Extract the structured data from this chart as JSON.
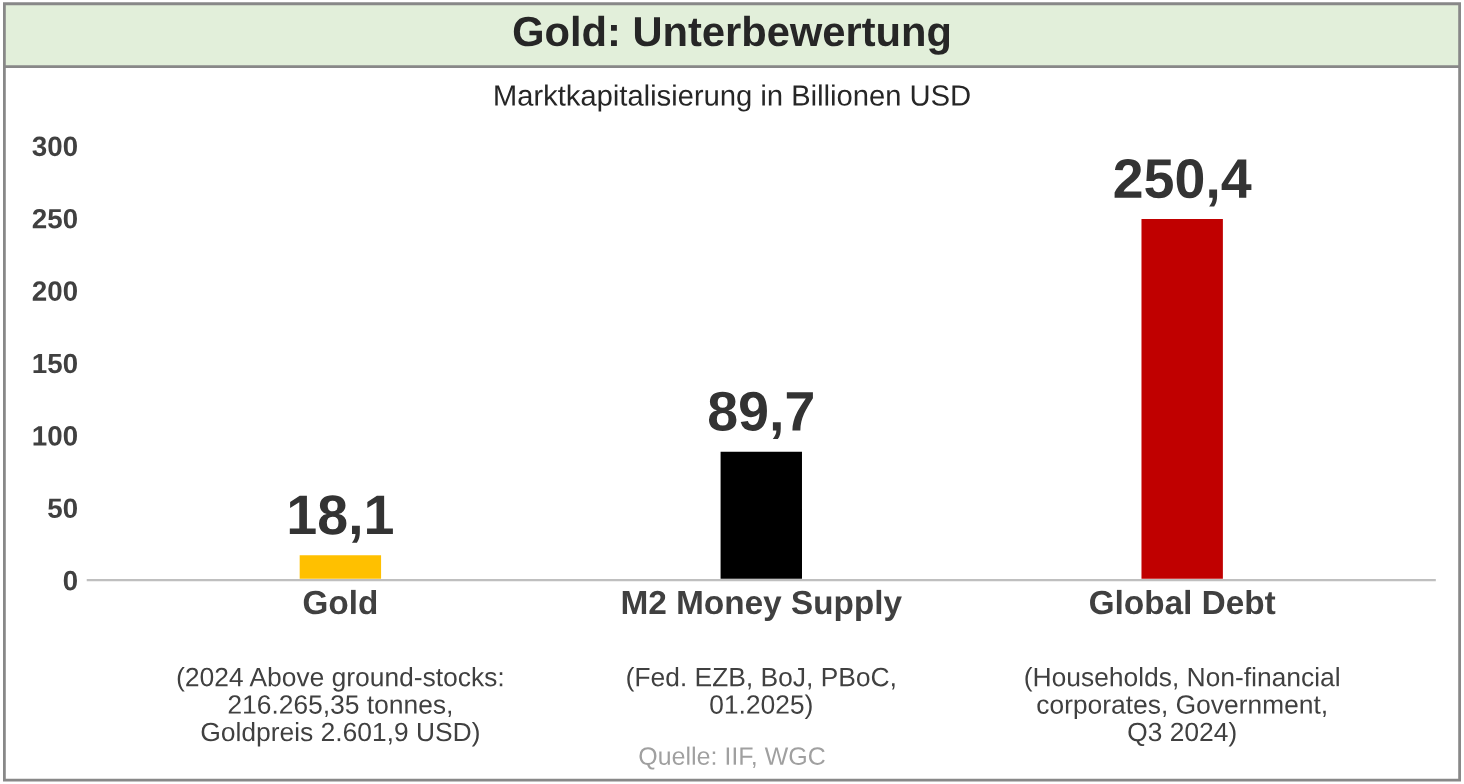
{
  "chart_data": {
    "type": "bar",
    "title": "Gold: Unterbewertung",
    "subtitle": "Marktkapitalisierung in Billionen USD",
    "categories": [
      "Gold",
      "M2 Money Supply",
      "Global Debt"
    ],
    "values": [
      18.1,
      89.7,
      250.4
    ],
    "colors": [
      "#ffc000",
      "#000000",
      "#c00000"
    ],
    "value_labels": [
      "18,1",
      "89,7",
      "250,4"
    ],
    "ylim": [
      0,
      300
    ],
    "yticks": [
      0,
      50,
      100,
      150,
      200,
      250,
      300
    ],
    "grid": false,
    "annotations": [
      "(2024 Above ground-stocks:\n216.265,35 tonnes,\nGoldpreis 2.601,9 USD)",
      "(Fed. EZB, BoJ, PBoC,\n01.2025)",
      "(Households, Non-financial\ncorporates, Government,\nQ3 2024)",
      "Quelle: IIF, WGC"
    ]
  }
}
